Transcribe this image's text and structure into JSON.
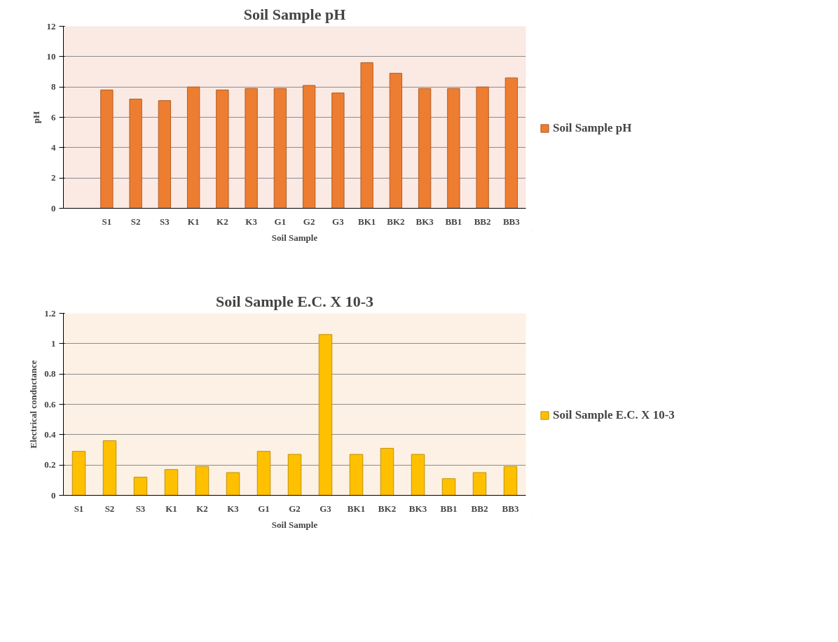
{
  "chart_data": [
    {
      "type": "bar",
      "title": "Soil Sample pH",
      "xlabel": "Soil Sample",
      "ylabel": "pH",
      "categories": [
        null,
        "S1",
        "S2",
        "S3",
        "K1",
        "K2",
        "K3",
        "G1",
        "G2",
        "G3",
        "BK1",
        "BK2",
        "BK3",
        "BB1",
        "BB2",
        "BB3"
      ],
      "series": [
        {
          "name": "Soil Sample pH",
          "color": "#ed7d31",
          "values": [
            null,
            7.8,
            7.2,
            7.1,
            8.0,
            7.8,
            7.9,
            7.9,
            8.1,
            7.6,
            9.6,
            8.9,
            7.9,
            7.9,
            8.0,
            8.6
          ]
        }
      ],
      "ylim": [
        0,
        12
      ],
      "yticks": [
        0,
        2,
        4,
        6,
        8,
        10,
        12
      ],
      "grid": "y",
      "legend": "right"
    },
    {
      "type": "bar",
      "title": "Soil Sample E.C. X 10-3",
      "xlabel": "Soil Sample",
      "ylabel": "Electrical conductance",
      "categories": [
        "S1",
        "S2",
        "S3",
        "K1",
        "K2",
        "K3",
        "G1",
        "G2",
        "G3",
        "BK1",
        "BK2",
        "BK3",
        "BB1",
        "BB2",
        "BB3"
      ],
      "series": [
        {
          "name": "Soil Sample E.C. X 10-3",
          "color": "#ffc000",
          "values": [
            0.29,
            0.36,
            0.12,
            0.17,
            0.19,
            0.15,
            0.29,
            0.27,
            1.06,
            0.27,
            0.31,
            0.27,
            0.11,
            0.15,
            0.19
          ]
        }
      ],
      "ylim": [
        0,
        1.2
      ],
      "yticks": [
        0,
        0.2,
        0.4,
        0.6,
        0.8,
        1,
        1.2
      ],
      "grid": "y",
      "legend": "right"
    }
  ]
}
